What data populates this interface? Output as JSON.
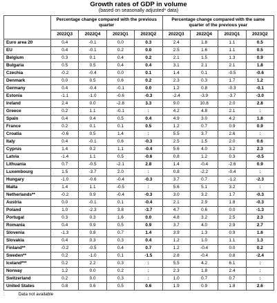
{
  "title": "Growth rates of GDP in volume",
  "subtitle": "(based on seasonally adjusted* data)",
  "groups": [
    "Percentage change compared with the previous quarter",
    "Percentage change compared with the same quarter of the previous year"
  ],
  "periods": [
    "2022Q3",
    "2022Q4",
    "2023Q1",
    "2023Q2",
    "2022Q3",
    "2022Q4",
    "2023Q1",
    "2023Q2"
  ],
  "rows": [
    {
      "name": "Euro area 20",
      "q": [
        "0.4",
        "-0.1",
        "0.0",
        "0.3"
      ],
      "y": [
        "2.4",
        "1.8",
        "1.1",
        "0.5"
      ]
    },
    {
      "name": "EU",
      "q": [
        "0.4",
        "-0.1",
        "0.2",
        "0.0"
      ],
      "y": [
        "2.5",
        "1.6",
        "1.1",
        "0.5"
      ]
    },
    {
      "name": "Belgium",
      "q": [
        "0.3",
        "0.1",
        "0.4",
        "0.2"
      ],
      "y": [
        "2.1",
        "1.5",
        "1.3",
        "0.9"
      ]
    },
    {
      "name": "Bulgaria",
      "q": [
        "0.5",
        "0.5",
        "0.4",
        "0.4"
      ],
      "y": [
        "3.1",
        "2.1",
        "2.1",
        "1.8"
      ]
    },
    {
      "name": "Czechia",
      "q": [
        "-0.2",
        "-0.4",
        "0.0",
        "0.1"
      ],
      "y": [
        "1.4",
        "0.1",
        "-0.5",
        "-0.6"
      ]
    },
    {
      "name": "Denmark",
      "q": [
        "0.0",
        "0.5",
        "0.6",
        "0.2"
      ],
      "y": [
        "2.3",
        "0.3",
        "1.7",
        "1.2"
      ]
    },
    {
      "name": "Germany",
      "q": [
        "0.4",
        "-0.4",
        "-0.1",
        "0.0"
      ],
      "y": [
        "1.2",
        "0.8",
        "-0.3",
        "-0.1"
      ]
    },
    {
      "name": "Estonia",
      "q": [
        "-1.1",
        "-1.0",
        "-0.6",
        "-0.3"
      ],
      "y": [
        "-2.4",
        "-3.9",
        "-3.7",
        "-3.0"
      ]
    },
    {
      "name": "Ireland",
      "q": [
        "2.4",
        "0.0",
        "-2.8",
        "3.3"
      ],
      "y": [
        "9.0",
        "10.8",
        "2.0",
        "2.8"
      ]
    },
    {
      "name": "Greece",
      "q": [
        "0.2",
        "1.1",
        "-0.1",
        ":"
      ],
      "y": [
        "4.2",
        "4.8",
        "2.1",
        ":"
      ]
    },
    {
      "name": "Spain",
      "q": [
        "0.4",
        "0.4",
        "0.5",
        "0.4"
      ],
      "y": [
        "4.9",
        "3.0",
        "4.2",
        "1.8"
      ]
    },
    {
      "name": "France",
      "q": [
        "0.2",
        "0.1",
        "0.1",
        "0.5"
      ],
      "y": [
        "1.2",
        "0.7",
        "0.9",
        "0.9"
      ]
    },
    {
      "name": "Croatia",
      "q": [
        "-0.6",
        "0.5",
        "1.4",
        ":"
      ],
      "y": [
        "5.5",
        "3.7",
        "2.6",
        ":"
      ]
    },
    {
      "name": "Italy",
      "q": [
        "0.4",
        "-0.1",
        "0.6",
        "-0.3"
      ],
      "y": [
        "2.5",
        "1.5",
        "2.0",
        "0.6"
      ]
    },
    {
      "name": "Cyprus",
      "q": [
        "1.4",
        "0.2",
        "1.1",
        "-0.4"
      ],
      "y": [
        "5.6",
        "4.0",
        "3.2",
        "2.3"
      ]
    },
    {
      "name": "Latvia",
      "q": [
        "-1.4",
        "1.1",
        "0.5",
        "-0.6"
      ],
      "y": [
        "0.8",
        "1.2",
        "0.3",
        "-0.5"
      ]
    },
    {
      "name": "Lithuania",
      "q": [
        "0.7",
        "-0.5",
        "-2.1",
        "2.8"
      ],
      "y": [
        "1.4",
        "-0.4",
        "-2.6",
        "0.9"
      ]
    },
    {
      "name": "Luxembourg",
      "q": [
        "1.5",
        "-3.7",
        "2.0",
        ":"
      ],
      "y": [
        "0.8",
        "-2.2",
        "-0.4",
        ":"
      ]
    },
    {
      "name": "Hungary",
      "q": [
        "-1.0",
        "-0.6",
        "-0.4",
        "-0.3"
      ],
      "y": [
        "3.7",
        "0.7",
        "-1.2",
        "-2.3"
      ]
    },
    {
      "name": "Malta",
      "q": [
        "1.4",
        "1.1",
        "-0.5",
        ":"
      ],
      "y": [
        "5.6",
        "5.1",
        "3.2",
        ":"
      ]
    },
    {
      "name": "Netherlands**",
      "q": [
        "-0.2",
        "0.9",
        "-0.4",
        "-0.3"
      ],
      "y": [
        "3.0",
        "3.2",
        "1.7",
        "-0.3"
      ]
    },
    {
      "name": "Austria",
      "q": [
        "0.0",
        "-0.1",
        "0.1",
        "-0.4"
      ],
      "y": [
        "2.1",
        "2.9",
        "1.8",
        "-0.3"
      ]
    },
    {
      "name": "Poland",
      "q": [
        "1.0",
        "-2.3",
        "3.8",
        "-3.7"
      ],
      "y": [
        "4.7",
        "0.6",
        "0.0",
        "-1.3"
      ]
    },
    {
      "name": "Portugal",
      "q": [
        "0.3",
        "0.3",
        "1.6",
        "0.0"
      ],
      "y": [
        "4.8",
        "3.2",
        "2.5",
        "2.3"
      ]
    },
    {
      "name": "Romania",
      "q": [
        "0.4",
        "0.9",
        "0.5",
        "0.9"
      ],
      "y": [
        "3.7",
        "4.0",
        "2.9",
        "2.7"
      ]
    },
    {
      "name": "Slovenia",
      "q": [
        "-1.3",
        "0.8",
        "0.7",
        "1.4"
      ],
      "y": [
        "3.9",
        "1.3",
        "0.9",
        "1.6"
      ]
    },
    {
      "name": "Slovakia",
      "q": [
        "0.4",
        "0.3",
        "0.3",
        "0.4"
      ],
      "y": [
        "1.2",
        "1.0",
        "1.1",
        "1.3"
      ]
    },
    {
      "name": "Finland**",
      "q": [
        "-0.2",
        "-0.5",
        "0.4",
        "0.7"
      ],
      "y": [
        "1.2",
        "-0.4",
        "0.0",
        "0.2"
      ]
    },
    {
      "name": "Sweden**",
      "q": [
        "0.2",
        "-1.0",
        "0.1",
        "-1.5"
      ],
      "y": [
        "2.8",
        "-0.4",
        "0.8",
        "-2.4"
      ]
    },
    {
      "name": "Iceland***",
      "q": [
        "0.2",
        "2.2",
        "0.3",
        ":"
      ],
      "y": [
        "5.5",
        "4.2",
        "6.1",
        ":"
      ]
    },
    {
      "name": "Norway",
      "q": [
        "1.2",
        "0.0",
        "0.2",
        ":"
      ],
      "y": [
        "2.3",
        "1.8",
        "2.4",
        ":"
      ]
    },
    {
      "name": "Switzerland",
      "q": [
        "0.2",
        "0.0",
        "0.3",
        ":"
      ],
      "y": [
        "1.0",
        "0.7",
        "0.7",
        ":"
      ]
    },
    {
      "name": "United States",
      "q": [
        "0.8",
        "0.6",
        "0.5",
        "0.6"
      ],
      "y": [
        "1.9",
        "0.9",
        "1.8",
        "2.6"
      ]
    }
  ],
  "separators_before": [
    "Belgium",
    "Iceland***",
    "United States"
  ],
  "footnote": {
    "symbol": ":",
    "text": "Data not available"
  }
}
